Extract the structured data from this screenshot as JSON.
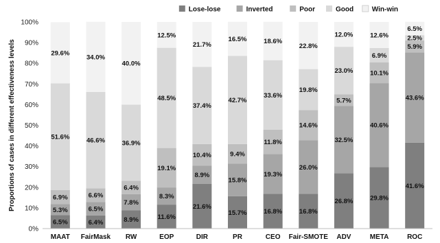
{
  "chart_data": {
    "type": "bar",
    "stacked": true,
    "title": "",
    "xlabel": "",
    "ylabel": "Proportions of cases in different effectiveness levels",
    "ylim": [
      0,
      100
    ],
    "y_ticks": [
      "0%",
      "10%",
      "20%",
      "30%",
      "40%",
      "50%",
      "60%",
      "70%",
      "80%",
      "90%",
      "100%"
    ],
    "grid": false,
    "legend_position": "top",
    "categories": [
      "MAAT",
      "FairMask",
      "RW",
      "EOP",
      "DIR",
      "PR",
      "CEO",
      "Fair-SMOTE",
      "ADV",
      "META",
      "ROC"
    ],
    "series": [
      {
        "name": "Lose-lose",
        "color": "#7f7f7f",
        "values": [
          6.5,
          6.4,
          8.9,
          11.6,
          21.6,
          15.7,
          16.8,
          16.8,
          26.8,
          29.8,
          41.6
        ],
        "labels": [
          "6.5%",
          "6.4%",
          "8.9%",
          "11.6%",
          "21.6%",
          "15.7%",
          "16.8%",
          "16.8%",
          "26.8%",
          "29.8%",
          "41.6%"
        ]
      },
      {
        "name": "Inverted",
        "color": "#a6a6a6",
        "values": [
          5.3,
          6.5,
          7.8,
          8.3,
          8.9,
          15.8,
          19.3,
          26.0,
          32.5,
          40.6,
          43.6
        ],
        "labels": [
          "5.3%",
          "6.5%",
          "7.8%",
          "8.3%",
          "8.9%",
          "15.8%",
          "19.3%",
          "26.0%",
          "32.5%",
          "40.6%",
          "43.6%"
        ]
      },
      {
        "name": "Poor",
        "color": "#bfbfbf",
        "values": [
          6.9,
          6.6,
          6.4,
          19.1,
          10.4,
          9.4,
          11.8,
          14.6,
          5.7,
          10.1,
          5.9
        ],
        "labels": [
          "6.9%",
          "6.6%",
          "6.4%",
          "19.1%",
          "10.4%",
          "9.4%",
          "11.8%",
          "14.6%",
          "5.7%",
          "10.1%",
          "5.9%"
        ]
      },
      {
        "name": "Good",
        "color": "#d9d9d9",
        "values": [
          51.6,
          46.6,
          36.9,
          48.5,
          37.4,
          42.7,
          33.6,
          19.8,
          23.0,
          6.9,
          2.5
        ],
        "labels": [
          "51.6%",
          "46.6%",
          "36.9%",
          "48.5%",
          "37.4%",
          "42.7%",
          "33.6%",
          "19.8%",
          "23.0%",
          "6.9%",
          "2.5%"
        ]
      },
      {
        "name": "Win-win",
        "color": "#f2f2f2",
        "values": [
          29.6,
          34.0,
          40.0,
          12.5,
          21.7,
          16.5,
          18.6,
          22.8,
          12.0,
          12.6,
          6.5
        ],
        "labels": [
          "29.6%",
          "34.0%",
          "40.0%",
          "12.5%",
          "21.7%",
          "16.5%",
          "18.6%",
          "22.8%",
          "12.0%",
          "12.6%",
          "6.5%"
        ]
      }
    ]
  }
}
